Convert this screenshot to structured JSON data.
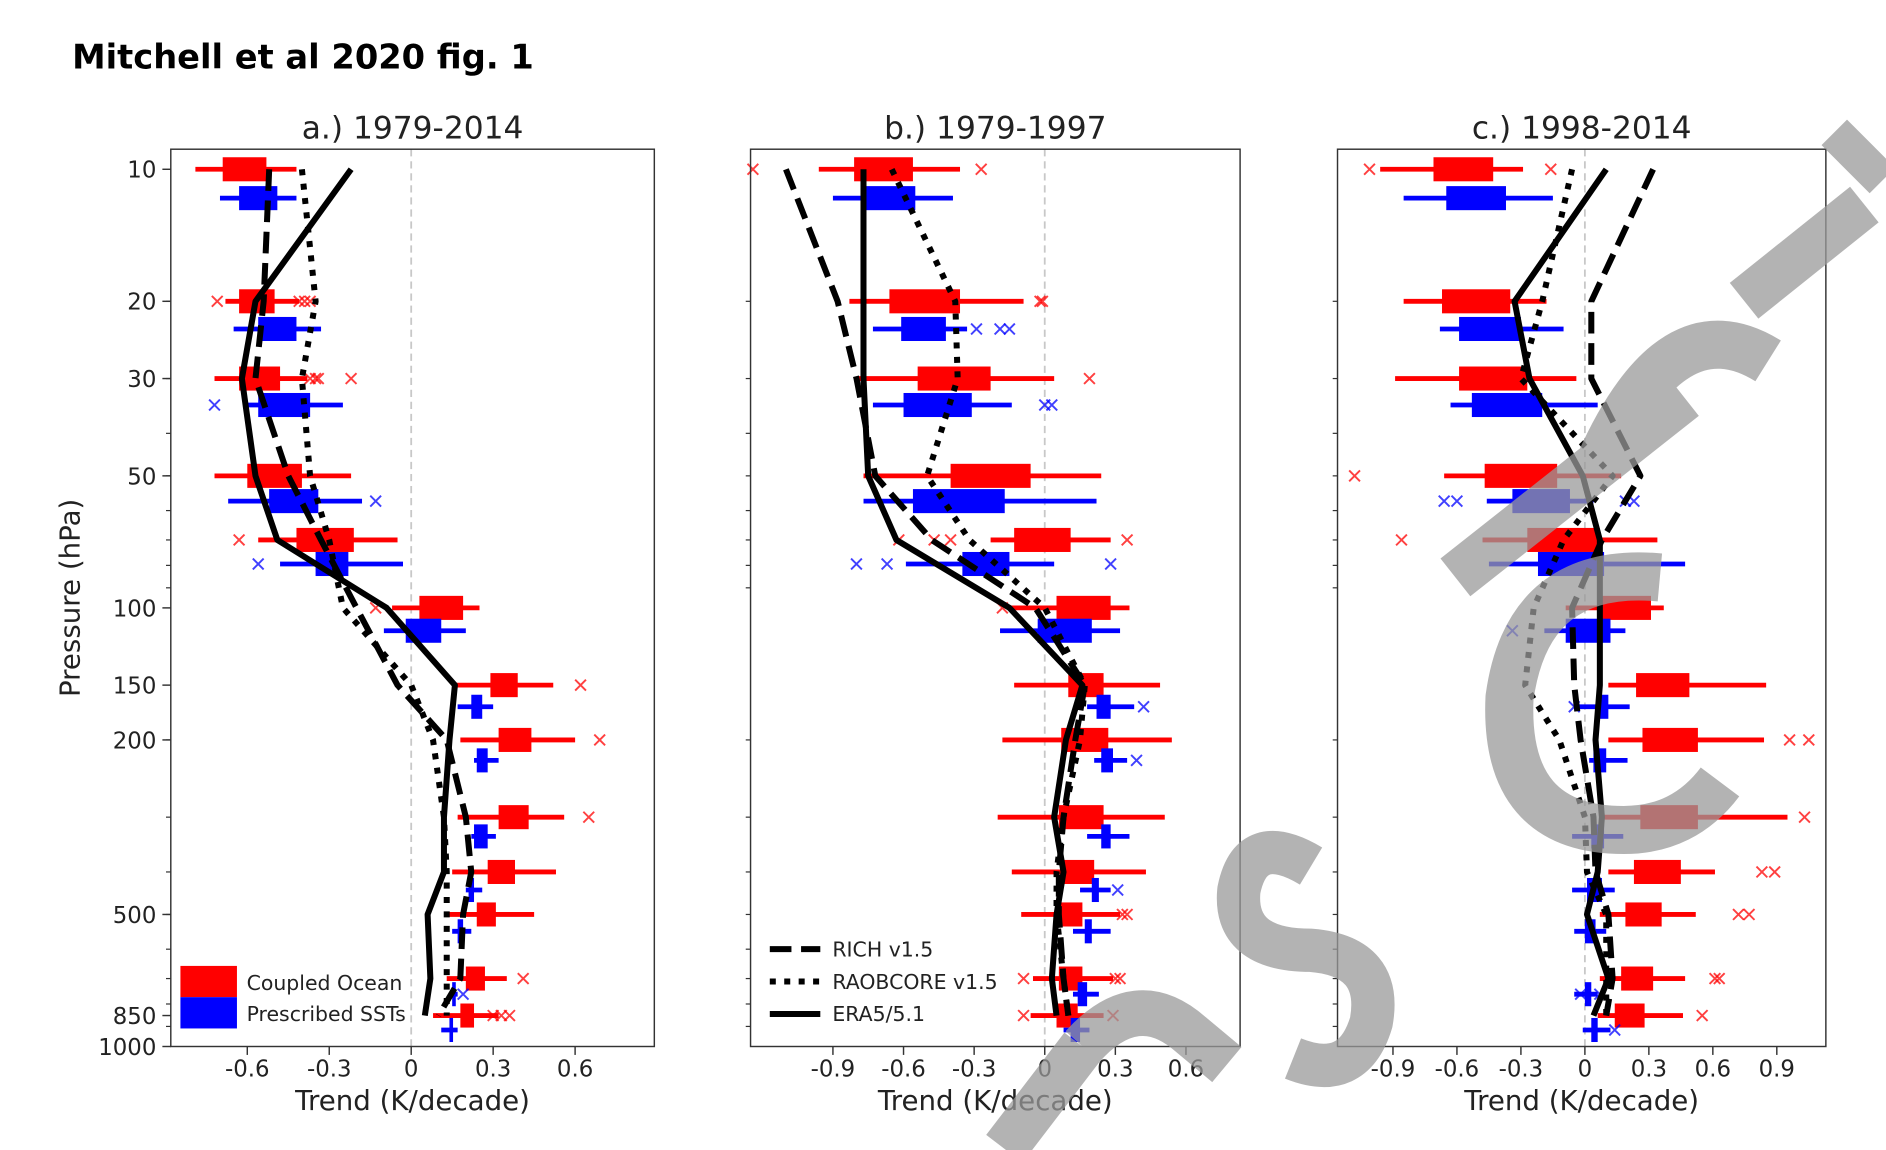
{
  "figure_title": "Mitchell et al 2020 fig. 1",
  "watermark": "uscript",
  "colors": {
    "coupled": "#ff0000",
    "prescribed": "#0000ff",
    "reanalysis": "#000000",
    "zero_line": "#c8c8c8",
    "watermark": "#9a9a9a"
  },
  "chart_data": [
    {
      "type": "box-profile",
      "title": "a.) 1979-2014",
      "xlabel": "Trend (K/decade)",
      "ylabel": "Pressure (hPa)",
      "xlim": [
        -0.88,
        0.89
      ],
      "ylim": [
        1000,
        9
      ],
      "yscale": "log",
      "xticks": [
        -0.6,
        -0.3,
        0,
        0.3,
        0.6
      ],
      "xtick_labels": [
        "-0.6",
        "-0.3",
        "0",
        "0.3",
        "0.6"
      ],
      "yticks": [
        10,
        20,
        30,
        50,
        100,
        150,
        200,
        500,
        850,
        1000
      ],
      "ytick_labels": [
        "10",
        "20",
        "30",
        "50",
        "100",
        "150",
        "200",
        "500",
        "850",
        "1000"
      ],
      "legend": {
        "placement": "lower-left",
        "entries": [
          "Coupled Ocean",
          "Prescribed SSTs"
        ]
      },
      "levels": [
        10,
        20,
        30,
        50,
        70,
        100,
        150,
        200,
        300,
        400,
        500,
        700,
        850
      ],
      "box_format": [
        "q1",
        "q3",
        "whisker_low",
        "whisker_high",
        "outliers"
      ],
      "boxes": {
        "coupled": [
          [
            -0.69,
            -0.53,
            -0.79,
            -0.42,
            []
          ],
          [
            -0.63,
            -0.5,
            -0.68,
            -0.41,
            [
              -0.71,
              -0.41,
              -0.39,
              -0.37
            ]
          ],
          [
            -0.63,
            -0.48,
            -0.72,
            -0.38,
            [
              -0.37,
              -0.35,
              -0.34,
              -0.22
            ]
          ],
          [
            -0.6,
            -0.4,
            -0.72,
            -0.22,
            []
          ],
          [
            -0.42,
            -0.21,
            -0.56,
            -0.05,
            [
              -0.63
            ]
          ],
          [
            0.03,
            0.19,
            -0.07,
            0.25,
            [
              -0.13
            ]
          ],
          [
            0.29,
            0.39,
            0.15,
            0.52,
            [
              0.62
            ]
          ],
          [
            0.32,
            0.44,
            0.18,
            0.6,
            [
              0.69
            ]
          ],
          [
            0.32,
            0.43,
            0.17,
            0.56,
            [
              0.65
            ]
          ],
          [
            0.28,
            0.38,
            0.15,
            0.53,
            []
          ],
          [
            0.24,
            0.31,
            0.14,
            0.45,
            []
          ],
          [
            0.2,
            0.27,
            0.13,
            0.35,
            [
              0.41
            ]
          ],
          [
            0.18,
            0.23,
            0.08,
            0.32,
            [
              0.3,
              0.33,
              0.36
            ]
          ]
        ],
        "prescribed": [
          [
            -0.63,
            -0.49,
            -0.7,
            -0.42,
            []
          ],
          [
            -0.56,
            -0.42,
            -0.65,
            -0.33,
            []
          ],
          [
            -0.56,
            -0.37,
            -0.6,
            -0.25,
            [
              -0.72
            ]
          ],
          [
            -0.52,
            -0.34,
            -0.67,
            -0.18,
            [
              -0.13
            ]
          ],
          [
            -0.35,
            -0.23,
            -0.48,
            -0.03,
            [
              -0.56
            ]
          ],
          [
            -0.02,
            0.11,
            -0.1,
            0.2,
            []
          ],
          [
            0.22,
            0.26,
            0.17,
            0.3,
            []
          ],
          [
            0.24,
            0.28,
            0.23,
            0.32,
            []
          ],
          [
            0.23,
            0.28,
            0.22,
            0.31,
            []
          ],
          [
            0.21,
            0.23,
            0.2,
            0.26,
            []
          ],
          [
            0.17,
            0.19,
            0.15,
            0.22,
            []
          ],
          [
            0.15,
            0.16,
            0.14,
            0.17,
            [
              0.19
            ]
          ],
          [
            0.14,
            0.15,
            0.11,
            0.17,
            []
          ]
        ]
      },
      "lines": {
        "RICH v1.5": [
          -0.52,
          -0.54,
          -0.57,
          -0.45,
          -0.33,
          -0.2,
          -0.05,
          0.13,
          0.2,
          0.22,
          0.19,
          0.18,
          0.1
        ],
        "RAOBCORE v1.5": [
          -0.4,
          -0.35,
          -0.4,
          -0.37,
          -0.3,
          -0.25,
          0.0,
          0.08,
          0.12,
          0.13,
          0.13,
          0.13,
          0.13
        ],
        "ERA5/5.1": [
          -0.22,
          -0.57,
          -0.62,
          -0.57,
          -0.49,
          -0.09,
          0.16,
          0.14,
          0.12,
          0.12,
          0.06,
          0.07,
          0.05
        ]
      }
    },
    {
      "type": "box-profile",
      "title": "b.) 1979-1997",
      "xlabel": "Trend (K/decade)",
      "xlim": [
        -1.25,
        0.83
      ],
      "ylim": [
        1000,
        9
      ],
      "yscale": "log",
      "xticks": [
        -0.9,
        -0.6,
        -0.3,
        0,
        0.3,
        0.6
      ],
      "xtick_labels": [
        "-0.9",
        "-0.6",
        "-0.3",
        "0",
        "0.3",
        "0.6"
      ],
      "legend": {
        "placement": "lower-left",
        "entries": [
          "RICH v1.5",
          "RAOBCORE v1.5",
          "ERA5/5.1"
        ]
      },
      "levels": [
        10,
        20,
        30,
        50,
        70,
        100,
        150,
        200,
        300,
        400,
        500,
        700,
        850
      ],
      "boxes": {
        "coupled": [
          [
            -0.81,
            -0.56,
            -0.96,
            -0.36,
            [
              -1.24,
              -0.27
            ]
          ],
          [
            -0.66,
            -0.36,
            -0.83,
            -0.09,
            [
              -0.02,
              -0.01
            ]
          ],
          [
            -0.54,
            -0.23,
            -0.79,
            0.04,
            [
              0.19
            ]
          ],
          [
            -0.4,
            -0.06,
            -0.77,
            0.24,
            []
          ],
          [
            -0.13,
            0.11,
            -0.23,
            0.28,
            [
              -0.62,
              -0.47,
              -0.4,
              0.35
            ]
          ],
          [
            0.05,
            0.28,
            -0.15,
            0.36,
            [
              -0.18
            ]
          ],
          [
            0.1,
            0.25,
            -0.13,
            0.49,
            []
          ],
          [
            0.07,
            0.27,
            -0.18,
            0.54,
            []
          ],
          [
            0.06,
            0.25,
            -0.2,
            0.51,
            []
          ],
          [
            0.07,
            0.21,
            -0.14,
            0.43,
            []
          ],
          [
            0.05,
            0.16,
            -0.1,
            0.32,
            [
              0.33,
              0.35
            ]
          ],
          [
            0.06,
            0.16,
            -0.05,
            0.29,
            [
              -0.09,
              0.3,
              0.32
            ]
          ],
          [
            0.05,
            0.14,
            -0.06,
            0.25,
            [
              -0.09,
              0.29
            ]
          ]
        ],
        "prescribed": [
          [
            -0.78,
            -0.55,
            -0.9,
            -0.39,
            []
          ],
          [
            -0.61,
            -0.42,
            -0.73,
            -0.33,
            [
              -0.29,
              -0.19,
              -0.15
            ]
          ],
          [
            -0.6,
            -0.31,
            -0.73,
            -0.14,
            [
              0.0,
              0.03
            ]
          ],
          [
            -0.56,
            -0.17,
            -0.77,
            0.22,
            []
          ],
          [
            -0.35,
            -0.15,
            -0.59,
            0.04,
            [
              -0.8,
              -0.67,
              0.28
            ]
          ],
          [
            -0.03,
            0.2,
            -0.19,
            0.32,
            []
          ],
          [
            0.22,
            0.28,
            0.18,
            0.38,
            [
              0.42
            ]
          ],
          [
            0.24,
            0.29,
            0.21,
            0.35,
            [
              0.39
            ]
          ],
          [
            0.24,
            0.28,
            0.18,
            0.36,
            []
          ],
          [
            0.2,
            0.23,
            0.15,
            0.28,
            [
              0.31
            ]
          ],
          [
            0.17,
            0.2,
            0.12,
            0.28,
            []
          ],
          [
            0.14,
            0.18,
            0.12,
            0.23,
            []
          ],
          [
            0.11,
            0.15,
            0.08,
            0.19,
            []
          ]
        ]
      },
      "lines": {
        "RICH v1.5": [
          -1.1,
          -0.88,
          -0.8,
          -0.72,
          -0.48,
          -0.04,
          0.17,
          0.13,
          0.08,
          0.06,
          0.06,
          0.08,
          0.1
        ],
        "RAOBCORE v1.5": [
          -0.65,
          -0.38,
          -0.37,
          -0.5,
          -0.32,
          0.0,
          0.17,
          0.15,
          0.08,
          0.05,
          0.05,
          0.08,
          0.1
        ],
        "ERA5/5.1": [
          -0.77,
          -0.77,
          -0.77,
          -0.75,
          -0.63,
          -0.15,
          0.16,
          0.09,
          0.04,
          0.08,
          0.05,
          0.03,
          0.05
        ]
      }
    },
    {
      "type": "box-profile",
      "title": "c.) 1998-2014",
      "xlabel": "Trend (K/decade)",
      "xlim": [
        -1.16,
        1.13
      ],
      "ylim": [
        1000,
        9
      ],
      "yscale": "log",
      "xticks": [
        -0.9,
        -0.6,
        -0.3,
        0,
        0.3,
        0.6,
        0.9
      ],
      "xtick_labels": [
        "-0.9",
        "-0.6",
        "-0.3",
        "0",
        "0.3",
        "0.6",
        "0.9"
      ],
      "levels": [
        10,
        20,
        30,
        50,
        70,
        100,
        150,
        200,
        300,
        400,
        500,
        700,
        850
      ],
      "boxes": {
        "coupled": [
          [
            -0.71,
            -0.43,
            -0.96,
            -0.29,
            [
              -1.01,
              -0.16
            ]
          ],
          [
            -0.67,
            -0.35,
            -0.85,
            -0.18,
            []
          ],
          [
            -0.59,
            -0.27,
            -0.89,
            -0.04,
            []
          ],
          [
            -0.47,
            -0.13,
            -0.66,
            0.17,
            [
              -1.08
            ]
          ],
          [
            -0.27,
            0.07,
            -0.48,
            0.34,
            [
              -0.86
            ]
          ],
          [
            0.06,
            0.31,
            -0.09,
            0.37,
            []
          ],
          [
            0.24,
            0.49,
            0.11,
            0.85,
            []
          ],
          [
            0.27,
            0.53,
            0.11,
            0.84,
            [
              0.96,
              1.05
            ]
          ],
          [
            0.26,
            0.53,
            0.09,
            0.95,
            [
              1.03
            ]
          ],
          [
            0.23,
            0.45,
            0.11,
            0.61,
            [
              0.83,
              0.89
            ]
          ],
          [
            0.19,
            0.36,
            0.07,
            0.52,
            [
              0.72,
              0.77
            ]
          ],
          [
            0.17,
            0.32,
            0.07,
            0.47,
            [
              0.61,
              0.63
            ]
          ],
          [
            0.14,
            0.28,
            0.06,
            0.46,
            [
              0.55
            ]
          ]
        ],
        "prescribed": [
          [
            -0.65,
            -0.37,
            -0.85,
            -0.15,
            []
          ],
          [
            -0.59,
            -0.3,
            -0.68,
            -0.1,
            []
          ],
          [
            -0.53,
            -0.2,
            -0.63,
            0.06,
            []
          ],
          [
            -0.34,
            -0.07,
            -0.46,
            0.04,
            [
              -0.66,
              -0.6,
              0.19,
              0.23
            ]
          ],
          [
            -0.22,
            0.09,
            -0.45,
            0.47,
            []
          ],
          [
            -0.09,
            0.12,
            -0.19,
            0.19,
            [
              -0.34
            ]
          ],
          [
            0.06,
            0.11,
            -0.03,
            0.21,
            [
              -0.05
            ]
          ],
          [
            0.04,
            0.1,
            0.02,
            0.2,
            []
          ],
          [
            0.03,
            0.09,
            -0.06,
            0.18,
            []
          ],
          [
            0.01,
            0.08,
            -0.06,
            0.14,
            []
          ],
          [
            0.0,
            0.05,
            -0.05,
            0.1,
            []
          ],
          [
            0.0,
            0.03,
            -0.05,
            0.06,
            [
              -0.02,
              0.07
            ]
          ],
          [
            0.03,
            0.06,
            -0.01,
            0.12,
            [
              0.14
            ]
          ]
        ]
      },
      "lines": {
        "RICH v1.5": [
          0.32,
          0.03,
          0.03,
          0.26,
          0.08,
          -0.06,
          -0.05,
          -0.02,
          0.04,
          0.05,
          0.11,
          0.13,
          0.1
        ],
        "RAOBCORE v1.5": [
          -0.06,
          -0.2,
          -0.3,
          0.13,
          -0.1,
          -0.24,
          -0.28,
          -0.12,
          0.0,
          0.01,
          0.1,
          0.1,
          0.1
        ],
        "ERA5/5.1": [
          0.1,
          -0.33,
          -0.26,
          -0.01,
          0.07,
          0.07,
          0.07,
          0.05,
          0.08,
          0.06,
          0.01,
          0.11,
          0.04
        ]
      }
    }
  ]
}
